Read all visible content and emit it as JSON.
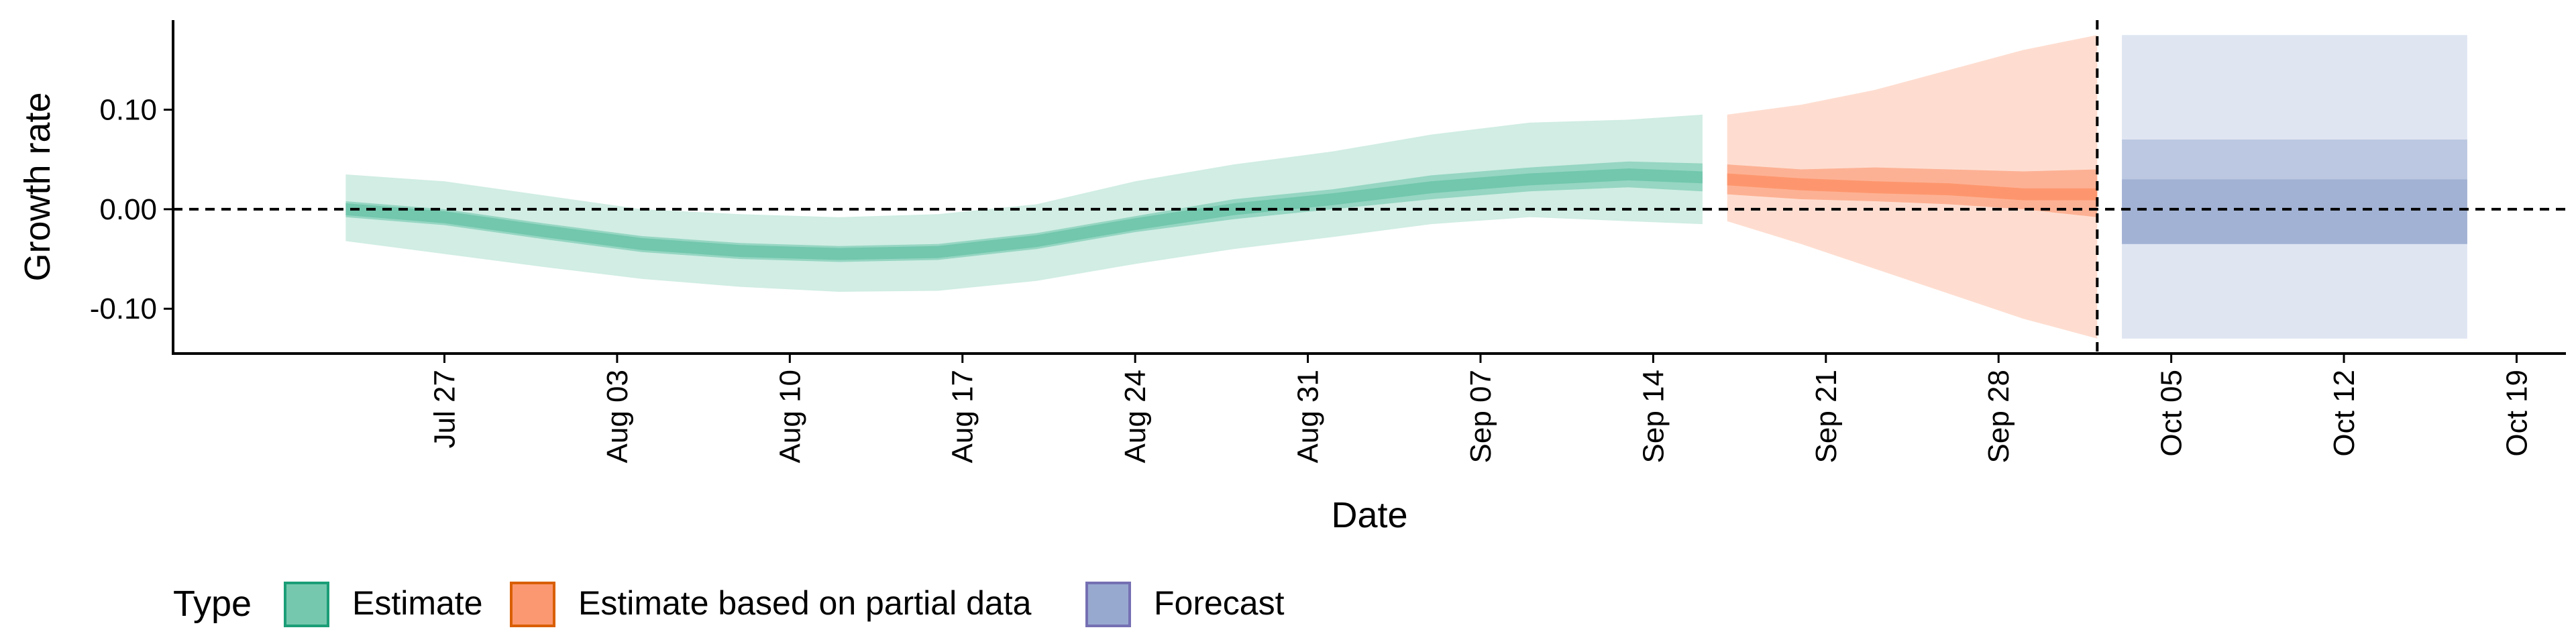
{
  "chart_data": {
    "type": "area",
    "xlabel": "Date",
    "ylabel": "Growth rate",
    "x_tick_labels": [
      "Jul 27",
      "Aug 03",
      "Aug 10",
      "Aug 17",
      "Aug 24",
      "Aug 31",
      "Sep 07",
      "Sep 14",
      "Sep 21",
      "Sep 28",
      "Oct 05",
      "Oct 12",
      "Oct 19"
    ],
    "x_ticks": [
      "2020-07-27",
      "2020-08-03",
      "2020-08-10",
      "2020-08-17",
      "2020-08-24",
      "2020-08-31",
      "2020-09-07",
      "2020-09-14",
      "2020-09-21",
      "2020-09-28",
      "2020-10-05",
      "2020-10-12",
      "2020-10-19"
    ],
    "y_tick_labels": [
      "-0.10",
      "0.00",
      "0.10"
    ],
    "y_ticks": [
      -0.1,
      0.0,
      0.1
    ],
    "xlim": [
      "2020-07-16",
      "2020-10-21"
    ],
    "ylim": [
      -0.145,
      0.19
    ],
    "reference_lines": {
      "horizontal_y": 0.0,
      "vertical_date": "2020-10-02"
    },
    "legend": {
      "title": "Type",
      "position": "bottom-left",
      "entries": [
        "Estimate",
        "Estimate based on partial data",
        "Forecast"
      ]
    },
    "colors": {
      "Estimate": {
        "fill": "#66C2A5",
        "stroke": "#1B9E77"
      },
      "Estimate based on partial data": {
        "fill": "#FC8D62",
        "stroke": "#D95F02"
      },
      "Forecast": {
        "fill": "#8DA0CB",
        "stroke": "#7570B3"
      }
    },
    "series": [
      {
        "name": "Estimate",
        "x": [
          "2020-07-23",
          "2020-07-27",
          "2020-07-31",
          "2020-08-04",
          "2020-08-08",
          "2020-08-12",
          "2020-08-16",
          "2020-08-20",
          "2020-08-24",
          "2020-08-28",
          "2020-09-01",
          "2020-09-05",
          "2020-09-09",
          "2020-09-13",
          "2020-09-16"
        ],
        "median": [
          0.0,
          -0.008,
          -0.022,
          -0.035,
          -0.042,
          -0.045,
          -0.043,
          -0.032,
          -0.015,
          0.0,
          0.01,
          0.022,
          0.03,
          0.035,
          0.032
        ],
        "lower_20": [
          -0.008,
          -0.016,
          -0.03,
          -0.043,
          -0.05,
          -0.053,
          -0.051,
          -0.04,
          -0.023,
          -0.01,
          0.0,
          0.01,
          0.018,
          0.022,
          0.018
        ],
        "upper_20": [
          0.008,
          0.0,
          -0.014,
          -0.027,
          -0.034,
          -0.037,
          -0.035,
          -0.024,
          -0.007,
          0.01,
          0.02,
          0.034,
          0.042,
          0.048,
          0.046
        ],
        "lower_90": [
          -0.032,
          -0.045,
          -0.058,
          -0.07,
          -0.078,
          -0.083,
          -0.082,
          -0.072,
          -0.055,
          -0.04,
          -0.028,
          -0.015,
          -0.008,
          -0.012,
          -0.015
        ],
        "upper_90": [
          0.035,
          0.028,
          0.014,
          0.0,
          -0.005,
          -0.008,
          -0.005,
          0.005,
          0.028,
          0.045,
          0.058,
          0.075,
          0.087,
          0.09,
          0.095
        ]
      },
      {
        "name": "Estimate based on partial data",
        "x": [
          "2020-09-17",
          "2020-09-20",
          "2020-09-23",
          "2020-09-26",
          "2020-09-29",
          "2020-10-02"
        ],
        "median": [
          0.03,
          0.025,
          0.022,
          0.02,
          0.015,
          0.015
        ],
        "lower_20": [
          0.015,
          0.01,
          0.008,
          0.005,
          0.0,
          -0.008
        ],
        "upper_20": [
          0.045,
          0.04,
          0.042,
          0.04,
          0.038,
          0.04
        ],
        "lower_90": [
          -0.012,
          -0.035,
          -0.06,
          -0.085,
          -0.11,
          -0.13
        ],
        "upper_90": [
          0.095,
          0.105,
          0.12,
          0.14,
          0.16,
          0.175
        ]
      },
      {
        "name": "Forecast",
        "x": [
          "2020-10-03",
          "2020-10-17"
        ],
        "median": [
          0.0,
          0.0
        ],
        "lower_20": [
          -0.035,
          -0.035
        ],
        "upper_20": [
          0.03,
          0.03
        ],
        "lower_50": [
          -0.035,
          -0.035
        ],
        "upper_50": [
          0.07,
          0.07
        ],
        "lower_90": [
          -0.13,
          -0.13
        ],
        "upper_90": [
          0.175,
          0.175
        ]
      }
    ]
  }
}
